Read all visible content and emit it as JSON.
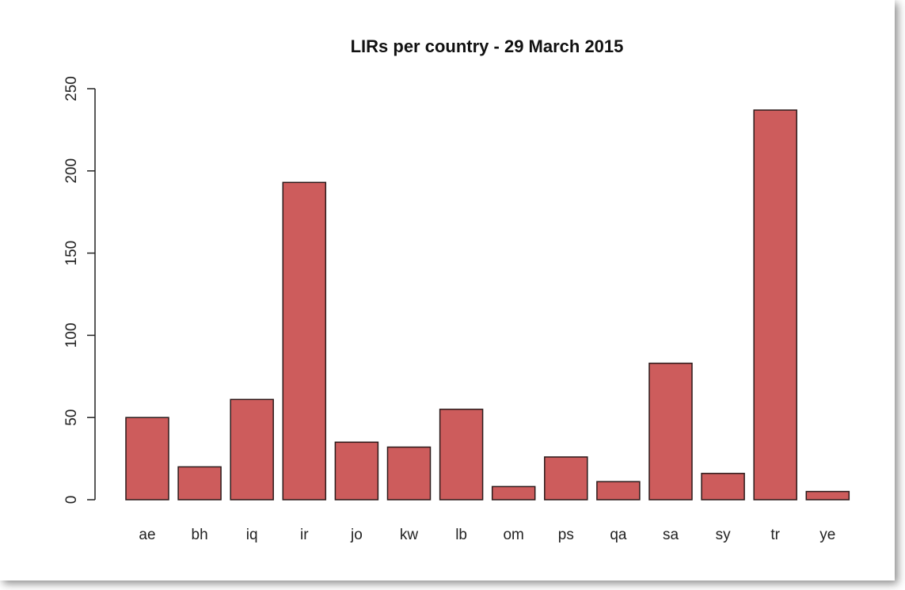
{
  "chart_data": {
    "type": "bar",
    "title": "LIRs per country - 29 March 2015",
    "xlabel": "",
    "ylabel": "",
    "categories": [
      "ae",
      "bh",
      "iq",
      "ir",
      "jo",
      "kw",
      "lb",
      "om",
      "ps",
      "qa",
      "sa",
      "sy",
      "tr",
      "ye"
    ],
    "values": [
      50,
      20,
      61,
      193,
      35,
      32,
      55,
      8,
      26,
      11,
      83,
      16,
      237,
      5
    ],
    "ylim": [
      0,
      250
    ],
    "yticks": [
      0,
      50,
      100,
      150,
      200,
      250
    ],
    "grid": false,
    "legend": "none",
    "colors": {
      "bar_fill": "#cd5c5c",
      "bar_stroke": "#2b1a1a"
    }
  }
}
